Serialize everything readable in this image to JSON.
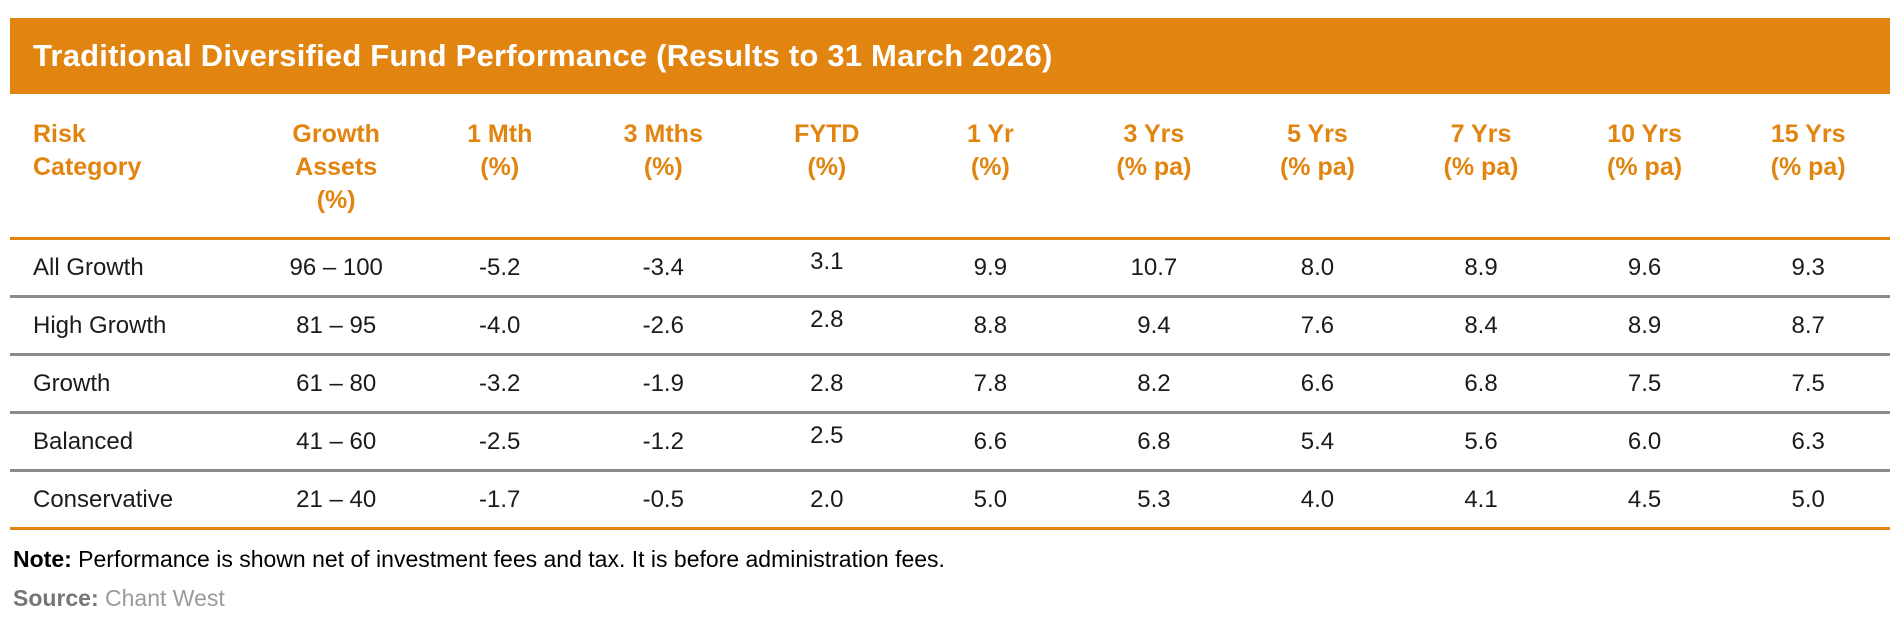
{
  "header": {
    "title": "Traditional Diversified Fund Performance (Results to 31 March 2026)"
  },
  "colors": {
    "accent_orange": "#E28410",
    "separator_gray": "#8B8B8B",
    "header_text_orange": "#E28410",
    "title_text": "#FFFFFF",
    "body_text": "#1B1B1B",
    "source_gray": "#9A9A9A"
  },
  "chart_data": {
    "type": "table",
    "title": "Traditional Diversified Fund Performance (Results to 31 March 2026)",
    "columns": [
      "Risk\nCategory",
      "Growth\nAssets\n(%)",
      "1 Mth\n(%)",
      "3 Mths\n(%)",
      "FYTD\n(%)",
      "1 Yr\n(%)",
      "3 Yrs\n(% pa)",
      "5 Yrs\n(% pa)",
      "7 Yrs\n(% pa)",
      "10 Yrs\n(% pa)",
      "15 Yrs\n(% pa)"
    ],
    "rows": [
      [
        "All Growth",
        "96 – 100",
        "-5.2",
        "-3.4",
        "3.1",
        "9.9",
        "10.7",
        "8.0",
        "8.9",
        "9.6",
        "9.3"
      ],
      [
        "High Growth",
        "81 – 95",
        "-4.0",
        "-2.6",
        "2.8",
        "8.8",
        "9.4",
        "7.6",
        "8.4",
        "8.9",
        "8.7"
      ],
      [
        "Growth",
        "61 – 80",
        "-3.2",
        "-1.9",
        "2.8",
        "7.8",
        "8.2",
        "6.6",
        "6.8",
        "7.5",
        "7.5"
      ],
      [
        "Balanced",
        "41 – 60",
        "-2.5",
        "-1.2",
        "2.5",
        "6.6",
        "6.8",
        "5.4",
        "5.6",
        "6.0",
        "6.3"
      ],
      [
        "Conservative",
        "21 – 40",
        "-1.7",
        "-0.5",
        "2.0",
        "5.0",
        "5.3",
        "4.0",
        "4.1",
        "4.5",
        "5.0"
      ]
    ]
  },
  "footnotes": {
    "note_label": "Note:",
    "note_text": " Performance is shown net of investment fees and tax. It is before administration fees.",
    "source_label": "Source:",
    "source_text": " Chant West"
  }
}
